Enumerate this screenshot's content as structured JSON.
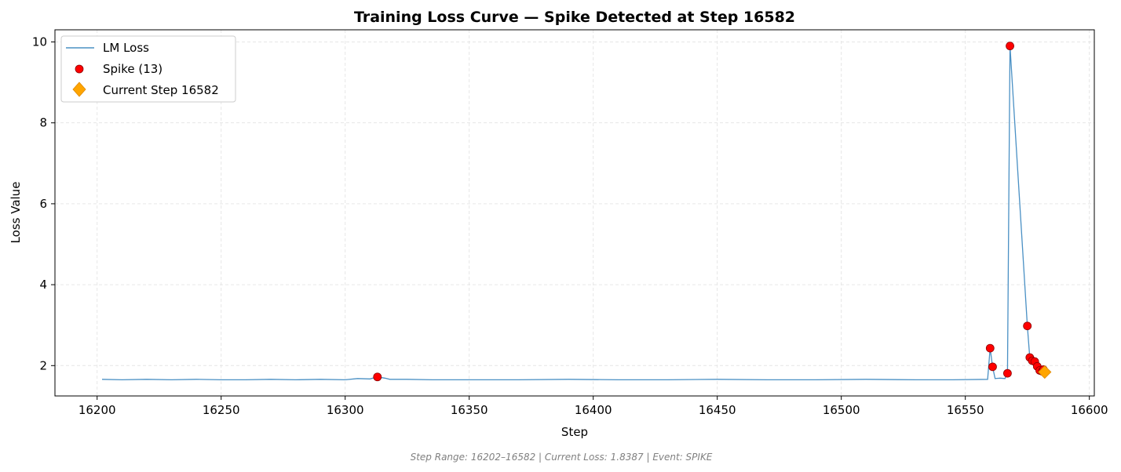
{
  "chart_data": {
    "type": "line",
    "title": "Training Loss Curve — Spike Detected at Step 16582",
    "xlabel": "Step",
    "ylabel": "Loss Value",
    "xlim": [
      16183,
      16602
    ],
    "ylim": [
      1.25,
      10.3
    ],
    "xticks": [
      16200,
      16250,
      16300,
      16350,
      16400,
      16450,
      16500,
      16550,
      16600
    ],
    "yticks": [
      2,
      4,
      6,
      8,
      10
    ],
    "grid": true,
    "legend_position": "top-left",
    "series": [
      {
        "name": "LM Loss",
        "kind": "line",
        "color": "#4a90c4",
        "x": [
          16202,
          16210,
          16220,
          16230,
          16240,
          16250,
          16260,
          16270,
          16280,
          16290,
          16300,
          16305,
          16310,
          16313,
          16316,
          16318,
          16325,
          16335,
          16350,
          16370,
          16390,
          16410,
          16430,
          16450,
          16470,
          16490,
          16510,
          16530,
          16545,
          16559,
          16560,
          16561,
          16562,
          16564,
          16566,
          16567,
          16568,
          16575,
          16576,
          16577,
          16578,
          16579,
          16580,
          16581,
          16582
        ],
        "y": [
          1.66,
          1.65,
          1.66,
          1.65,
          1.66,
          1.65,
          1.65,
          1.66,
          1.65,
          1.66,
          1.65,
          1.68,
          1.67,
          1.72,
          1.69,
          1.66,
          1.66,
          1.65,
          1.65,
          1.65,
          1.66,
          1.65,
          1.65,
          1.66,
          1.65,
          1.65,
          1.66,
          1.65,
          1.65,
          1.66,
          2.43,
          1.97,
          1.68,
          1.69,
          1.68,
          1.81,
          9.9,
          2.98,
          2.2,
          2.12,
          2.1,
          1.98,
          1.88,
          1.86,
          1.84
        ]
      },
      {
        "name": "Spike (13)",
        "kind": "scatter",
        "color": "#ff0000",
        "edge_color": "#8b0000",
        "x": [
          16313,
          16560,
          16561,
          16567,
          16568,
          16575,
          16576,
          16577,
          16578,
          16579,
          16580,
          16581,
          16581.5
        ],
        "y": [
          1.72,
          2.43,
          1.97,
          1.81,
          9.9,
          2.98,
          2.2,
          2.12,
          2.1,
          1.98,
          1.88,
          1.86,
          1.9
        ]
      },
      {
        "name": "Current Step 16582",
        "kind": "marker",
        "color": "#ffa500",
        "x": [
          16582
        ],
        "y": [
          1.84
        ]
      }
    ]
  },
  "footer": "Step Range: 16202–16582 | Current Loss: 1.8387 | Event: SPIKE"
}
